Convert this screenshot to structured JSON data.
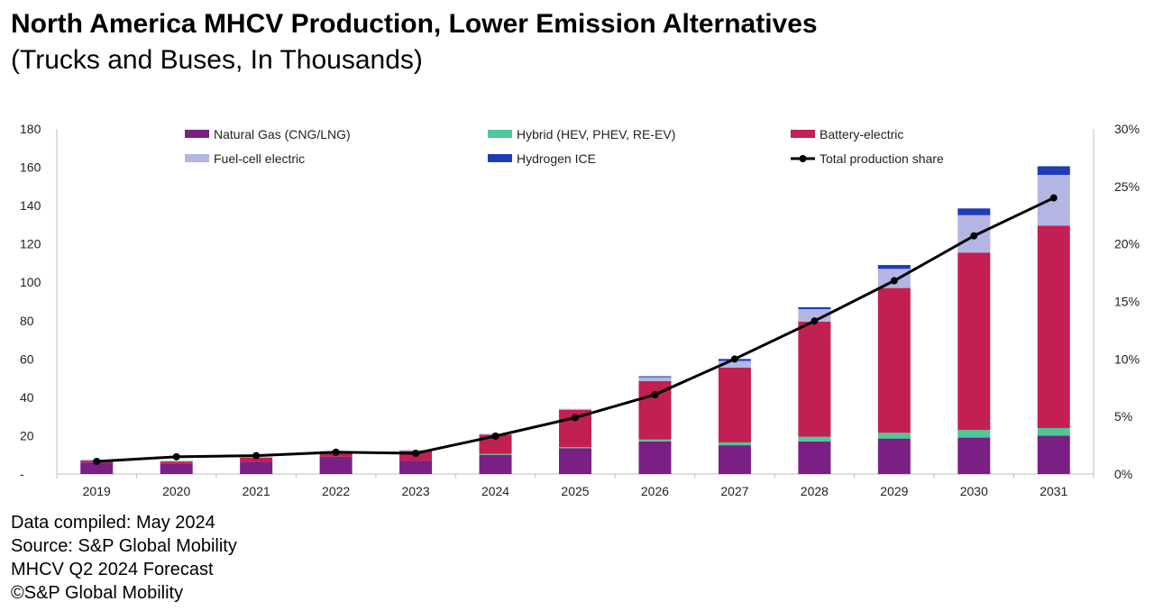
{
  "title": "North America MHCV Production, Lower Emission Alternatives",
  "subtitle": "(Trucks and Buses, In Thousands)",
  "footer": {
    "line1": "Data compiled: May 2024",
    "line2": "Source: S&P Global Mobility",
    "line3": "MHCV Q2 2024 Forecast",
    "line4": "©S&P Global Mobility"
  },
  "chart_data": {
    "type": "bar",
    "stacked": true,
    "title": "North America MHCV Production, Lower Emission Alternatives",
    "subtitle": "(Trucks and Buses, In Thousands)",
    "categories": [
      "2019",
      "2020",
      "2021",
      "2022",
      "2023",
      "2024",
      "2025",
      "2026",
      "2027",
      "2028",
      "2029",
      "2030",
      "2031"
    ],
    "ylim": [
      0,
      180
    ],
    "yticks": [
      0,
      20,
      40,
      60,
      80,
      100,
      120,
      140,
      160,
      180
    ],
    "ytick_labels": [
      "-",
      "20",
      "40",
      "60",
      "80",
      "100",
      "120",
      "140",
      "160",
      "180"
    ],
    "y2lim": [
      0,
      30
    ],
    "y2ticks": [
      0,
      5,
      10,
      15,
      20,
      25,
      30
    ],
    "y2tick_labels": [
      "0%",
      "5%",
      "10%",
      "15%",
      "20%",
      "25%",
      "30%"
    ],
    "series": [
      {
        "name": "Natural Gas (CNG/LNG)",
        "color": "#7a1f84",
        "values": [
          6,
          5.5,
          6.5,
          9,
          7,
          10,
          13.5,
          17,
          15,
          17,
          18.5,
          19,
          20
        ]
      },
      {
        "name": "Hybrid (HEV, PHEV, RE-EV)",
        "color": "#4fc796",
        "values": [
          0,
          0,
          0,
          0,
          0,
          0.5,
          0.5,
          1,
          1.5,
          2.5,
          3,
          4,
          4
        ]
      },
      {
        "name": "Battery-electric",
        "color": "#c21f52",
        "values": [
          1,
          1,
          2,
          2.5,
          5,
          10,
          19.5,
          30.5,
          39,
          60,
          75.5,
          92.5,
          105.5
        ]
      },
      {
        "name": "Fuel-cell electric",
        "color": "#b3b5e3",
        "values": [
          0.5,
          0.5,
          0.5,
          0.5,
          0.5,
          0.5,
          0.5,
          2,
          3.5,
          6.5,
          10,
          19.5,
          26.5
        ]
      },
      {
        "name": "Hydrogen ICE",
        "color": "#1f3bb8",
        "values": [
          0,
          0,
          0,
          0,
          0,
          0,
          0,
          0.5,
          1,
          1,
          2,
          3.5,
          4.5
        ]
      }
    ],
    "line_series": {
      "name": "Total production share",
      "color": "#000000",
      "axis": "right",
      "values": [
        1.1,
        1.5,
        1.6,
        1.9,
        1.8,
        3.3,
        4.9,
        6.9,
        10.0,
        13.3,
        16.8,
        20.7,
        24.0
      ]
    },
    "legend": [
      {
        "label": "Natural Gas (CNG/LNG)",
        "color": "#7a1f84",
        "kind": "box"
      },
      {
        "label": "Hybrid (HEV, PHEV, RE-EV)",
        "color": "#4fc796",
        "kind": "box"
      },
      {
        "label": "Battery-electric",
        "color": "#c21f52",
        "kind": "box"
      },
      {
        "label": "Fuel-cell electric",
        "color": "#b3b5e3",
        "kind": "box"
      },
      {
        "label": "Hydrogen ICE",
        "color": "#1f3bb8",
        "kind": "box"
      },
      {
        "label": "Total production share",
        "color": "#000000",
        "kind": "line"
      }
    ]
  }
}
